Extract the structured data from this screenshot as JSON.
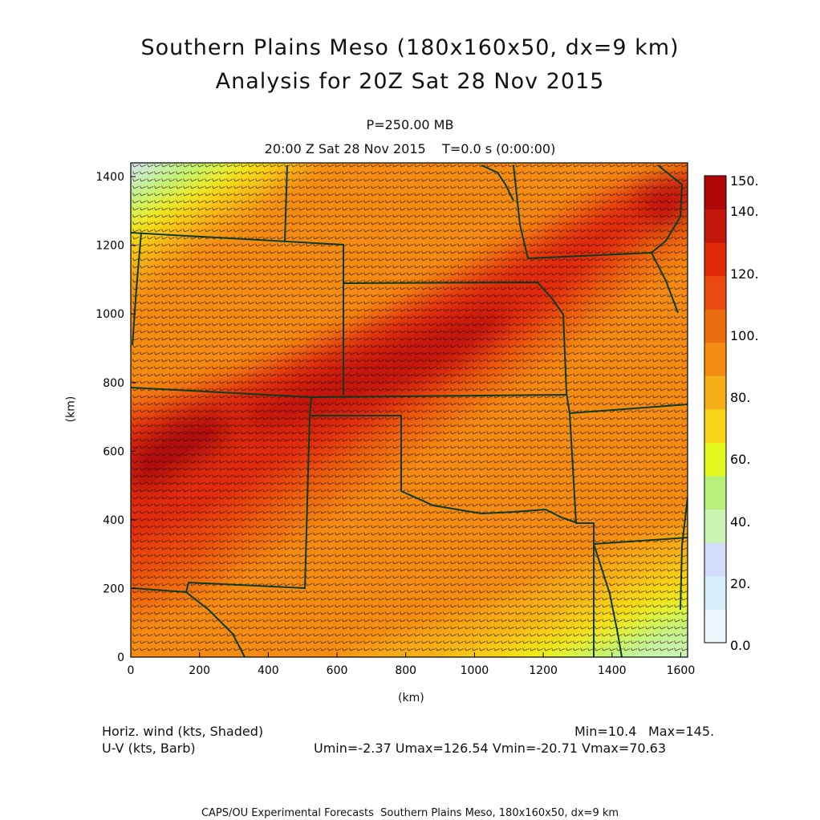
{
  "header": {
    "title_line1": "Southern Plains Meso (180x160x50, dx=9 km)",
    "title_line2": "Analysis for 20Z Sat 28 Nov 2015",
    "level": "P=250.00 MB",
    "valid_time": "20:00 Z Sat 28 Nov 2015    T=0.0 s (0:00:00)"
  },
  "axes": {
    "x_label": "(km)",
    "y_label": "(km)",
    "x_ticks": [
      "0",
      "200",
      "400",
      "600",
      "800",
      "1000",
      "1200",
      "1400",
      "1600"
    ],
    "y_ticks": [
      "0",
      "200",
      "400",
      "600",
      "800",
      "1000",
      "1200",
      "1400"
    ],
    "x_range_km": [
      0,
      1620
    ],
    "y_range_km": [
      0,
      1440
    ]
  },
  "colorbar": {
    "labels": [
      "150.",
      "140.",
      "120.",
      "100.",
      "80.",
      "60.",
      "40.",
      "20.",
      "0.0"
    ],
    "colors_bottom_to_top": [
      "#eef8fc",
      "#d6eefa",
      "#d2dcf8",
      "#ccf5b4",
      "#b8f07a",
      "#e2f81e",
      "#f8d418",
      "#f6ae16",
      "#f48c14",
      "#ee6c10",
      "#ea4a10",
      "#e02a0a",
      "#c4160a",
      "#b00808"
    ]
  },
  "field": {
    "name": "Horiz. wind (kts, Shaded)",
    "vector": "U-V (kts, Barb)",
    "min": "Min=10.4",
    "max": "Max=145.",
    "uv_stats": "Umin=-2.37 Umax=126.54 Vmin=-20.71 Vmax=70.63"
  },
  "credit": "CAPS/OU Experimental Forecasts  Southern Plains Meso, 180x160x50, dx=9 km"
}
